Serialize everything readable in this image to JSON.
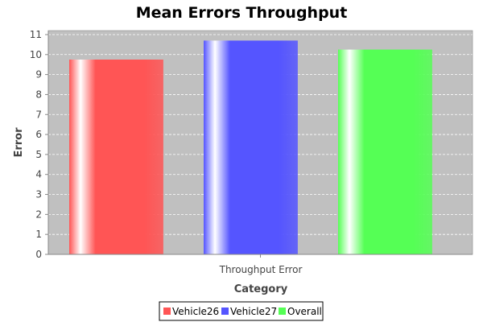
{
  "chart_data": {
    "type": "bar",
    "title": "Mean Errors Throughput",
    "xlabel": "Category",
    "ylabel": "Error",
    "categories": [
      "Throughput Error"
    ],
    "series": [
      {
        "name": "Vehicle26",
        "values": [
          9.75
        ],
        "color": "#ff5555"
      },
      {
        "name": "Vehicle27",
        "values": [
          10.7
        ],
        "color": "#5555ff"
      },
      {
        "name": "Overall",
        "values": [
          10.25
        ],
        "color": "#55ff55"
      }
    ],
    "ylim": [
      0,
      11.2
    ],
    "yticks": [
      "0",
      "1",
      "2",
      "3",
      "4",
      "5",
      "6",
      "7",
      "8",
      "9",
      "10",
      "11"
    ],
    "grid": true,
    "legend": "bottom",
    "plot_background": "#c0c0c0"
  }
}
